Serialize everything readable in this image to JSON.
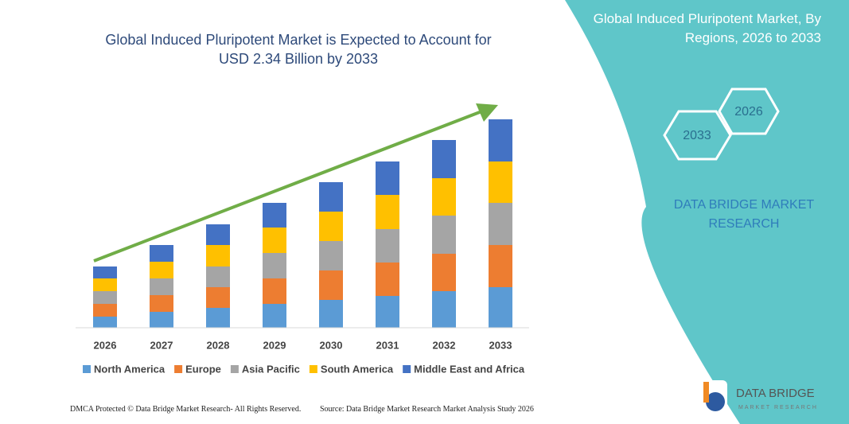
{
  "chart_data": {
    "type": "bar",
    "stacked": true,
    "title": "Global Induced Pluripotent Market is Expected to Account for USD 2.34 Billion by 2033",
    "categories": [
      "2026",
      "2027",
      "2028",
      "2029",
      "2030",
      "2031",
      "2032",
      "2033"
    ],
    "series": [
      {
        "name": "North America",
        "color": "#5b9bd5",
        "values": [
          14,
          20,
          25,
          30,
          35,
          40,
          46,
          51
        ]
      },
      {
        "name": "Europe",
        "color": "#ed7d31",
        "values": [
          16,
          21,
          26,
          32,
          37,
          42,
          47,
          53
        ]
      },
      {
        "name": "Asia Pacific",
        "color": "#a5a5a5",
        "values": [
          16,
          21,
          26,
          32,
          37,
          42,
          48,
          53
        ]
      },
      {
        "name": "South America",
        "color": "#ffc000",
        "values": [
          16,
          21,
          27,
          32,
          37,
          43,
          47,
          52
        ]
      },
      {
        "name": "Middle East and Africa",
        "color": "#4472c4",
        "values": [
          15,
          21,
          26,
          31,
          37,
          42,
          48,
          53
        ]
      }
    ]
  },
  "panel": {
    "title": "Global Induced Pluripotent Market, By Regions, 2026 to 2033",
    "hexagons": [
      "2026",
      "2033"
    ],
    "brand": "DATA BRIDGE MARKET RESEARCH"
  },
  "footer": {
    "copyright": "DMCA Protected © Data Bridge Market Research- All Rights Reserved.",
    "source": "Source: Data Bridge Market Research Market Analysis Study 2026"
  },
  "logo": {
    "name": "DATA BRIDGE",
    "tagline": "MARKET RESEARCH"
  }
}
